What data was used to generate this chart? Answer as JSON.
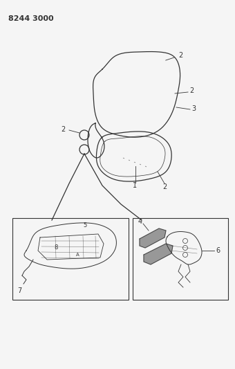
{
  "title": "8244 3000",
  "bg_color": "#f5f5f5",
  "line_color": "#333333",
  "title_fontsize": 8,
  "fig_width": 3.4,
  "fig_height": 5.33,
  "dpi": 100
}
